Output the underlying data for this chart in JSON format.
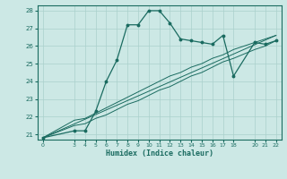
{
  "xlabel": "Humidex (Indice chaleur)",
  "bg_color": "#cce8e5",
  "grid_color": "#aad0cc",
  "line_color": "#1a6b60",
  "xlim": [
    -0.5,
    22.5
  ],
  "ylim": [
    20.7,
    28.3
  ],
  "xticks": [
    0,
    3,
    4,
    5,
    6,
    7,
    8,
    9,
    10,
    11,
    12,
    13,
    14,
    15,
    16,
    17,
    18,
    20,
    21,
    22
  ],
  "yticks": [
    21,
    22,
    23,
    24,
    25,
    26,
    27,
    28
  ],
  "line1_x": [
    0,
    3,
    4,
    5,
    6,
    7,
    8,
    9,
    10,
    11,
    12,
    13,
    14,
    15,
    16,
    17,
    18,
    20,
    21,
    22
  ],
  "line1_y": [
    20.8,
    21.2,
    21.2,
    22.3,
    24.0,
    25.2,
    27.2,
    27.2,
    28.0,
    28.0,
    27.3,
    26.4,
    26.3,
    26.2,
    26.1,
    26.6,
    24.3,
    26.2,
    26.1,
    26.3
  ],
  "line2_x": [
    0,
    3,
    4,
    5,
    6,
    7,
    8,
    9,
    10,
    11,
    12,
    13,
    14,
    15,
    16,
    17,
    18,
    20,
    21,
    22
  ],
  "line2_y": [
    20.8,
    21.8,
    21.9,
    22.2,
    22.5,
    22.8,
    23.1,
    23.4,
    23.7,
    24.0,
    24.3,
    24.5,
    24.8,
    25.0,
    25.3,
    25.5,
    25.8,
    26.2,
    26.4,
    26.6
  ],
  "line3_x": [
    0,
    3,
    4,
    5,
    6,
    7,
    8,
    9,
    10,
    11,
    12,
    13,
    14,
    15,
    16,
    17,
    18,
    20,
    21,
    22
  ],
  "line3_y": [
    20.8,
    21.5,
    21.6,
    21.9,
    22.1,
    22.4,
    22.7,
    22.9,
    23.2,
    23.5,
    23.7,
    24.0,
    24.3,
    24.5,
    24.8,
    25.1,
    25.3,
    25.8,
    26.0,
    26.3
  ],
  "line4_x": [
    0,
    22
  ],
  "line4_y": [
    20.8,
    26.6
  ]
}
